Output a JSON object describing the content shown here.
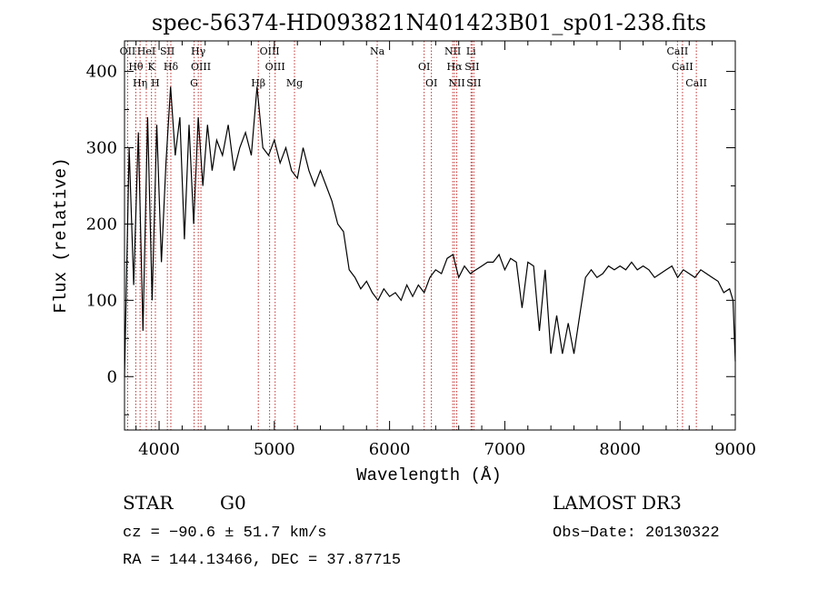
{
  "chart_data": {
    "type": "line",
    "title": "spec-56374-HD093821N401423B01_sp01-238.fits",
    "xlabel": "Wavelength (Å)",
    "ylabel": "Flux (relative)",
    "xlim": [
      3700,
      9000
    ],
    "ylim": [
      -70,
      440
    ],
    "xticks": [
      4000,
      5000,
      6000,
      7000,
      8000,
      9000
    ],
    "xtick_labels": [
      "4000",
      "5000",
      "6000",
      "7000",
      "8000",
      "9000"
    ],
    "yticks": [
      0,
      100,
      200,
      300,
      400
    ],
    "ytick_labels": [
      "0",
      "100",
      "200",
      "300",
      "400"
    ],
    "series": [
      {
        "name": "flux",
        "x": [
          3700,
          3740,
          3780,
          3820,
          3860,
          3900,
          3940,
          3980,
          4020,
          4060,
          4100,
          4140,
          4180,
          4220,
          4260,
          4300,
          4340,
          4380,
          4420,
          4460,
          4500,
          4550,
          4600,
          4650,
          4700,
          4750,
          4800,
          4850,
          4900,
          4950,
          5000,
          5050,
          5100,
          5150,
          5200,
          5250,
          5300,
          5350,
          5400,
          5450,
          5500,
          5550,
          5600,
          5650,
          5700,
          5750,
          5800,
          5850,
          5900,
          5950,
          6000,
          6050,
          6100,
          6150,
          6200,
          6250,
          6300,
          6350,
          6400,
          6450,
          6500,
          6550,
          6600,
          6650,
          6700,
          6750,
          6800,
          6850,
          6900,
          6950,
          7000,
          7050,
          7100,
          7150,
          7200,
          7250,
          7300,
          7350,
          7400,
          7450,
          7500,
          7550,
          7600,
          7650,
          7700,
          7750,
          7800,
          7850,
          7900,
          7950,
          8000,
          8050,
          8100,
          8150,
          8200,
          8250,
          8300,
          8350,
          8400,
          8450,
          8500,
          8550,
          8600,
          8650,
          8700,
          8750,
          8800,
          8850,
          8900,
          8950,
          8980,
          9000
        ],
        "y": [
          0,
          300,
          120,
          320,
          60,
          340,
          100,
          330,
          150,
          280,
          380,
          290,
          340,
          180,
          330,
          200,
          340,
          250,
          330,
          270,
          310,
          290,
          330,
          270,
          300,
          320,
          290,
          380,
          300,
          290,
          310,
          280,
          300,
          270,
          260,
          300,
          270,
          250,
          270,
          250,
          230,
          200,
          190,
          140,
          130,
          115,
          125,
          110,
          100,
          115,
          105,
          110,
          100,
          120,
          105,
          120,
          110,
          130,
          140,
          135,
          155,
          160,
          130,
          145,
          135,
          140,
          145,
          150,
          150,
          160,
          140,
          155,
          150,
          90,
          150,
          145,
          60,
          140,
          30,
          80,
          30,
          70,
          30,
          80,
          130,
          140,
          130,
          135,
          145,
          140,
          145,
          140,
          150,
          140,
          145,
          140,
          130,
          135,
          140,
          145,
          130,
          140,
          135,
          130,
          140,
          135,
          130,
          125,
          110,
          115,
          100,
          20
        ]
      }
    ],
    "lines": [
      {
        "name": "OII",
        "wl": 3727
      },
      {
        "name": "Hθ",
        "wl": 3798
      },
      {
        "name": "Hη",
        "wl": 3835
      },
      {
        "name": "HeI",
        "wl": 3889
      },
      {
        "name": "K",
        "wl": 3934
      },
      {
        "name": "H",
        "wl": 3968
      },
      {
        "name": "SII",
        "wl": 4072
      },
      {
        "name": "Hδ",
        "wl": 4102
      },
      {
        "name": "G",
        "wl": 4304
      },
      {
        "name": "Hγ",
        "wl": 4340
      },
      {
        "name": "OIII",
        "wl": 4363
      },
      {
        "name": "Hβ",
        "wl": 4861
      },
      {
        "name": "OIII",
        "wl": 4959
      },
      {
        "name": "OIII",
        "wl": 5007
      },
      {
        "name": "Mg",
        "wl": 5175
      },
      {
        "name": "Na",
        "wl": 5893
      },
      {
        "name": "OI",
        "wl": 6300
      },
      {
        "name": "OI",
        "wl": 6363
      },
      {
        "name": "NII",
        "wl": 6548
      },
      {
        "name": "Hα",
        "wl": 6563
      },
      {
        "name": "NII",
        "wl": 6583
      },
      {
        "name": "Li",
        "wl": 6707
      },
      {
        "name": "SII",
        "wl": 6716
      },
      {
        "name": "SII",
        "wl": 6731
      },
      {
        "name": "CaII",
        "wl": 8498
      },
      {
        "name": "CaII",
        "wl": 8542
      },
      {
        "name": "CaII",
        "wl": 8662
      }
    ]
  },
  "info": {
    "class": "STAR",
    "subclass": "G0",
    "survey": "LAMOST DR3",
    "cz": "cz = −90.6 ± 51.7 km/s",
    "obs_date": "Obs−Date: 20130322",
    "radec": "RA = 144.13466, DEC =  37.87715"
  },
  "colors": {
    "axis": "#000000",
    "spectrum": "#000000",
    "line_marker": "#c03030",
    "background": "#ffffff"
  }
}
